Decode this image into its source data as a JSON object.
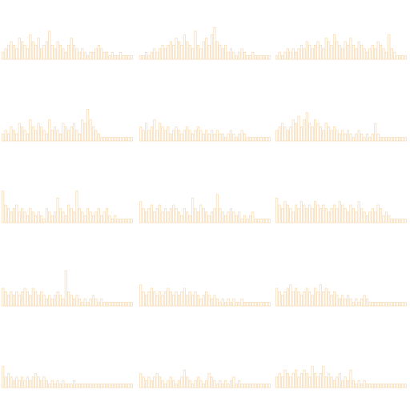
{
  "chart_data": {
    "type": "bar",
    "grid": false,
    "legend": "none",
    "colors": {
      "background": "#ffffff",
      "bar_stroke": "#f6d9b0",
      "baseline": "#f9e7cc"
    },
    "panels": [
      {
        "row": 1,
        "col": 1,
        "values": [
          2,
          3,
          4,
          5,
          4,
          3,
          6,
          5,
          4,
          3,
          7,
          5,
          4,
          6,
          3,
          4,
          5,
          8,
          4,
          3,
          5,
          4,
          3,
          2,
          4,
          6,
          4,
          3,
          2,
          3,
          2,
          1,
          2,
          2,
          3,
          4,
          3,
          2,
          2,
          1,
          2,
          1,
          1,
          2,
          1,
          1,
          1,
          1
        ]
      },
      {
        "row": 1,
        "col": 2,
        "values": [
          1,
          1,
          2,
          1,
          2,
          3,
          2,
          3,
          4,
          3,
          4,
          5,
          4,
          6,
          5,
          4,
          7,
          5,
          4,
          3,
          8,
          4,
          3,
          5,
          6,
          4,
          7,
          9,
          5,
          4,
          3,
          4,
          2,
          3,
          2,
          1,
          2,
          3,
          2,
          1,
          1,
          2,
          1,
          1,
          1,
          1,
          1,
          1
        ]
      },
      {
        "row": 1,
        "col": 3,
        "values": [
          1,
          2,
          1,
          2,
          3,
          2,
          3,
          2,
          3,
          4,
          3,
          5,
          4,
          3,
          4,
          5,
          4,
          3,
          6,
          5,
          4,
          7,
          5,
          4,
          3,
          5,
          4,
          6,
          4,
          3,
          5,
          4,
          3,
          2,
          3,
          4,
          3,
          5,
          4,
          3,
          2,
          7,
          3,
          2,
          1,
          1,
          1,
          1
        ]
      },
      {
        "row": 2,
        "col": 1,
        "values": [
          2,
          3,
          2,
          4,
          3,
          2,
          5,
          4,
          3,
          2,
          6,
          4,
          3,
          5,
          4,
          3,
          2,
          6,
          3,
          4,
          3,
          2,
          5,
          4,
          3,
          4,
          5,
          3,
          2,
          6,
          5,
          9,
          6,
          4,
          3,
          2,
          1,
          1,
          1,
          1,
          1,
          1,
          1,
          1,
          1,
          1,
          1,
          1
        ]
      },
      {
        "row": 2,
        "col": 2,
        "values": [
          4,
          3,
          5,
          3,
          4,
          6,
          3,
          5,
          4,
          3,
          4,
          2,
          3,
          4,
          3,
          2,
          3,
          4,
          3,
          2,
          3,
          4,
          3,
          2,
          3,
          2,
          3,
          2,
          3,
          2,
          2,
          1,
          2,
          3,
          2,
          1,
          2,
          3,
          2,
          1,
          1,
          1,
          1,
          1,
          1,
          1,
          1,
          1
        ]
      },
      {
        "row": 2,
        "col": 3,
        "values": [
          3,
          4,
          5,
          4,
          3,
          4,
          6,
          5,
          7,
          4,
          6,
          8,
          5,
          4,
          6,
          5,
          4,
          3,
          5,
          4,
          3,
          4,
          3,
          2,
          3,
          2,
          3,
          2,
          1,
          2,
          3,
          2,
          1,
          2,
          1,
          2,
          5,
          2,
          1,
          1,
          1,
          1,
          1,
          1,
          1,
          1,
          1,
          1
        ]
      },
      {
        "row": 3,
        "col": 1,
        "values": [
          9,
          5,
          4,
          3,
          4,
          5,
          3,
          4,
          3,
          2,
          4,
          3,
          2,
          3,
          2,
          1,
          4,
          3,
          2,
          3,
          7,
          4,
          3,
          2,
          5,
          4,
          3,
          9,
          4,
          3,
          2,
          4,
          3,
          2,
          3,
          4,
          2,
          3,
          4,
          2,
          1,
          2,
          1,
          1,
          1,
          1,
          1,
          1
        ]
      },
      {
        "row": 3,
        "col": 2,
        "values": [
          6,
          4,
          3,
          4,
          5,
          3,
          4,
          5,
          3,
          4,
          3,
          4,
          5,
          4,
          3,
          2,
          4,
          3,
          2,
          7,
          4,
          3,
          5,
          4,
          3,
          2,
          3,
          4,
          8,
          4,
          3,
          2,
          3,
          4,
          3,
          2,
          3,
          1,
          2,
          1,
          2,
          3,
          1,
          1,
          1,
          1,
          1,
          1
        ]
      },
      {
        "row": 3,
        "col": 3,
        "values": [
          7,
          5,
          4,
          6,
          5,
          4,
          3,
          5,
          4,
          6,
          5,
          4,
          5,
          4,
          6,
          5,
          4,
          5,
          4,
          3,
          4,
          5,
          4,
          6,
          5,
          4,
          3,
          5,
          4,
          3,
          6,
          4,
          3,
          2,
          3,
          4,
          3,
          5,
          4,
          2,
          3,
          2,
          1,
          1,
          1,
          1,
          1,
          1
        ]
      },
      {
        "row": 4,
        "col": 1,
        "values": [
          5,
          4,
          3,
          4,
          3,
          4,
          3,
          4,
          5,
          4,
          3,
          5,
          4,
          3,
          4,
          3,
          2,
          3,
          2,
          3,
          4,
          3,
          2,
          10,
          4,
          3,
          2,
          3,
          2,
          1,
          2,
          1,
          2,
          3,
          2,
          1,
          2,
          1,
          1,
          1,
          1,
          1,
          1,
          1,
          1,
          1,
          1,
          1
        ]
      },
      {
        "row": 4,
        "col": 2,
        "values": [
          6,
          4,
          3,
          4,
          5,
          4,
          3,
          4,
          3,
          4,
          5,
          4,
          3,
          4,
          3,
          4,
          5,
          3,
          4,
          3,
          4,
          3,
          2,
          3,
          4,
          3,
          2,
          3,
          2,
          1,
          2,
          1,
          2,
          1,
          2,
          1,
          1,
          2,
          1,
          1,
          1,
          1,
          1,
          1,
          1,
          1,
          1,
          1
        ]
      },
      {
        "row": 4,
        "col": 3,
        "values": [
          5,
          4,
          3,
          4,
          5,
          6,
          4,
          5,
          4,
          3,
          4,
          5,
          4,
          3,
          5,
          4,
          6,
          4,
          5,
          4,
          3,
          4,
          3,
          2,
          3,
          2,
          3,
          2,
          1,
          2,
          1,
          2,
          3,
          2,
          1,
          1,
          1,
          1,
          1,
          1,
          1,
          1,
          1,
          1,
          1,
          1,
          1,
          1
        ]
      },
      {
        "row": 5,
        "col": 1,
        "values": [
          6,
          3,
          4,
          3,
          2,
          3,
          2,
          3,
          2,
          3,
          2,
          3,
          4,
          3,
          2,
          3,
          2,
          1,
          2,
          1,
          2,
          1,
          2,
          1,
          1,
          1,
          2,
          1,
          1,
          1,
          1,
          1,
          1,
          1,
          1,
          1,
          1,
          1,
          1,
          1,
          1,
          1,
          1,
          1,
          1,
          1,
          1,
          1
        ]
      },
      {
        "row": 5,
        "col": 2,
        "values": [
          4,
          3,
          2,
          3,
          2,
          3,
          4,
          3,
          2,
          1,
          2,
          3,
          2,
          1,
          2,
          3,
          5,
          3,
          2,
          1,
          2,
          3,
          2,
          1,
          2,
          4,
          3,
          2,
          1,
          2,
          1,
          2,
          1,
          2,
          3,
          1,
          2,
          1,
          1,
          1,
          1,
          1,
          1,
          1,
          1,
          1,
          1,
          1
        ]
      },
      {
        "row": 5,
        "col": 3,
        "values": [
          3,
          4,
          3,
          5,
          4,
          3,
          4,
          5,
          3,
          4,
          5,
          4,
          3,
          6,
          4,
          3,
          4,
          6,
          3,
          4,
          3,
          2,
          3,
          4,
          2,
          3,
          2,
          5,
          2,
          1,
          2,
          1,
          2,
          1,
          1,
          1,
          1,
          1,
          1,
          1,
          1,
          1,
          1,
          1,
          1,
          1,
          1,
          1
        ]
      }
    ]
  }
}
